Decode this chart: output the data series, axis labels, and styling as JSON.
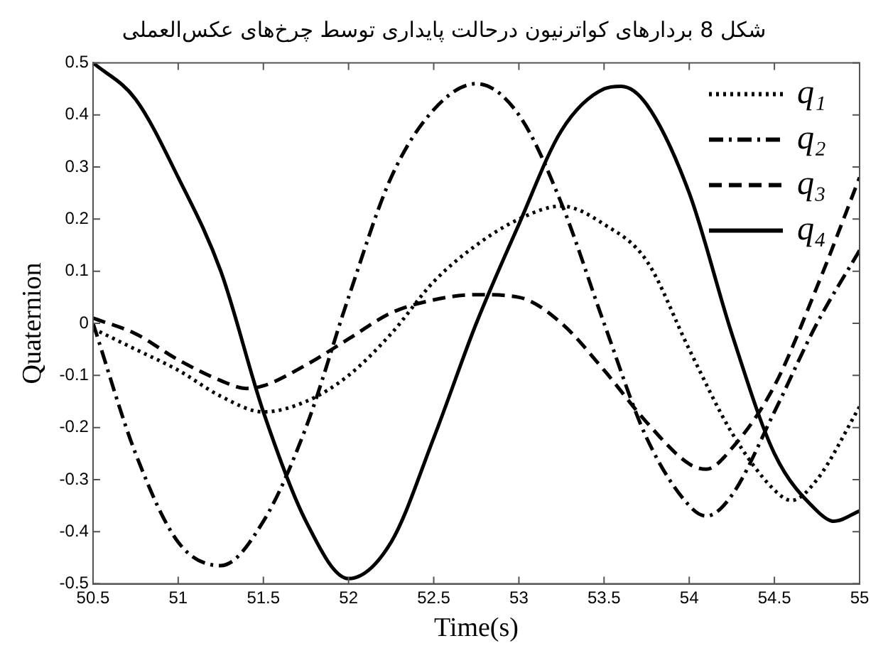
{
  "chart_data": {
    "type": "line",
    "title": "شکل 8 بردارهای کواترنیون درحالت پایداری توسط چرخ‌های عکس‌العملی",
    "xlabel": "Time(s)",
    "ylabel": "Quaternion",
    "xlim": [
      50.5,
      55
    ],
    "xticks": [
      50.5,
      51,
      51.5,
      52,
      52.5,
      53,
      53.5,
      54,
      54.5,
      55
    ],
    "ylim": [
      -0.5,
      0.5
    ],
    "yticks": [
      -0.5,
      -0.4,
      -0.3,
      -0.2,
      -0.1,
      0,
      0.1,
      0.2,
      0.3,
      0.4,
      0.5
    ],
    "grid": false,
    "legend": "top right",
    "marker": "none",
    "series": [
      {
        "name": "q₁",
        "color": "#000000",
        "line_style": "dotted",
        "x": [
          50.5,
          50.75,
          51,
          51.25,
          51.5,
          51.75,
          52,
          52.25,
          52.5,
          52.75,
          53,
          53.25,
          53.5,
          53.75,
          54,
          54.25,
          54.5,
          54.6,
          54.75,
          55
        ],
        "values": [
          -0.01,
          -0.05,
          -0.09,
          -0.14,
          -0.17,
          -0.15,
          -0.1,
          -0.02,
          0.08,
          0.15,
          0.2,
          0.225,
          0.19,
          0.12,
          -0.05,
          -0.21,
          -0.32,
          -0.34,
          -0.3,
          -0.16
        ]
      },
      {
        "name": "q₂",
        "color": "#000000",
        "line_style": "dashdot",
        "x": [
          50.5,
          50.75,
          51,
          51.25,
          51.5,
          51.75,
          52,
          52.25,
          52.5,
          52.75,
          53,
          53.25,
          53.5,
          53.75,
          54,
          54.1,
          54.25,
          54.5,
          54.75,
          55
        ],
        "values": [
          0.0,
          -0.25,
          -0.42,
          -0.465,
          -0.38,
          -0.2,
          0.05,
          0.28,
          0.41,
          0.46,
          0.4,
          0.23,
          0.0,
          -0.22,
          -0.35,
          -0.37,
          -0.33,
          -0.17,
          0.0,
          0.14
        ]
      },
      {
        "name": "q₃",
        "color": "#000000",
        "line_style": "dashed",
        "x": [
          50.5,
          50.75,
          51,
          51.25,
          51.4,
          51.5,
          51.75,
          52,
          52.25,
          52.5,
          52.75,
          53,
          53.25,
          53.5,
          53.75,
          54,
          54.1,
          54.25,
          54.5,
          54.75,
          55
        ],
        "values": [
          0.01,
          -0.02,
          -0.07,
          -0.11,
          -0.125,
          -0.12,
          -0.08,
          -0.03,
          0.02,
          0.045,
          0.055,
          0.05,
          0.0,
          -0.09,
          -0.19,
          -0.27,
          -0.28,
          -0.24,
          -0.12,
          0.07,
          0.28
        ]
      },
      {
        "name": "q₄",
        "color": "#000000",
        "line_style": "solid",
        "x": [
          50.5,
          50.75,
          51,
          51.25,
          51.5,
          51.75,
          52,
          52.25,
          52.5,
          52.75,
          53,
          53.25,
          53.5,
          53.6,
          53.75,
          54,
          54.25,
          54.5,
          54.75,
          54.85,
          55
        ],
        "values": [
          0.5,
          0.43,
          0.28,
          0.1,
          -0.17,
          -0.38,
          -0.49,
          -0.42,
          -0.22,
          0.0,
          0.19,
          0.37,
          0.45,
          0.455,
          0.42,
          0.25,
          -0.02,
          -0.25,
          -0.36,
          -0.38,
          -0.36
        ]
      }
    ]
  }
}
